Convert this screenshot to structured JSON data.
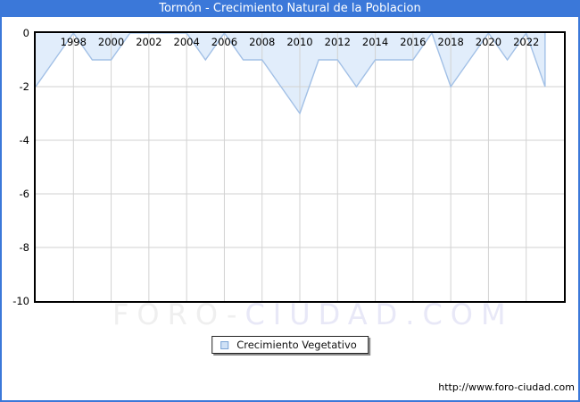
{
  "window": {
    "title": "Tormón - Crecimiento Natural de la Poblacion"
  },
  "legend": {
    "label": "Crecimiento Vegetativo"
  },
  "watermark": {
    "part1": "FORO-",
    "part2": "CIUDAD.COM"
  },
  "footer": {
    "url": "http://www.foro-ciudad.com"
  },
  "colors": {
    "titlebar_blue": "#3b78d9",
    "frame_border_blue": "#3b78d9",
    "plot_border": "#000000",
    "grid": "#d2d2d2",
    "area_fill": "#e1edfb",
    "area_line": "#a2c0e6",
    "legend_swatch_fill": "#cfe1f6",
    "legend_swatch_border": "#7aa3d5",
    "watermark_gray": "#efefef",
    "watermark_lavender": "#e8e8f7"
  },
  "chart_data": {
    "type": "area",
    "title": "Tormón - Crecimiento Natural de la Poblacion",
    "series_name": "Crecimiento Vegetativo",
    "x": [
      1996,
      1997,
      1998,
      1999,
      2000,
      2001,
      2002,
      2003,
      2004,
      2005,
      2006,
      2007,
      2008,
      2009,
      2010,
      2011,
      2012,
      2013,
      2014,
      2015,
      2016,
      2017,
      2018,
      2019,
      2020,
      2021,
      2022,
      2023
    ],
    "values": [
      -2,
      -1,
      0,
      -1,
      -1,
      0,
      0,
      0,
      0,
      -1,
      0,
      -1,
      -1,
      -2,
      -3,
      -1,
      -1,
      -2,
      -1,
      -1,
      -1,
      0,
      -2,
      -1,
      0,
      -1,
      0,
      -2
    ],
    "baseline": 0,
    "xlim": [
      1996,
      2024
    ],
    "ylim": [
      -10,
      0
    ],
    "xtick_years": [
      1998,
      2000,
      2002,
      2004,
      2006,
      2008,
      2010,
      2012,
      2014,
      2016,
      2018,
      2020,
      2022
    ],
    "ytick_values": [
      0,
      -2,
      -4,
      -6,
      -8,
      -10
    ],
    "ytick_labels": [
      "0",
      "-2",
      "-4",
      "-6",
      "-8",
      "-10"
    ],
    "grid": true,
    "xticks_position": "top-inside",
    "legend_position": "bottom-center"
  }
}
